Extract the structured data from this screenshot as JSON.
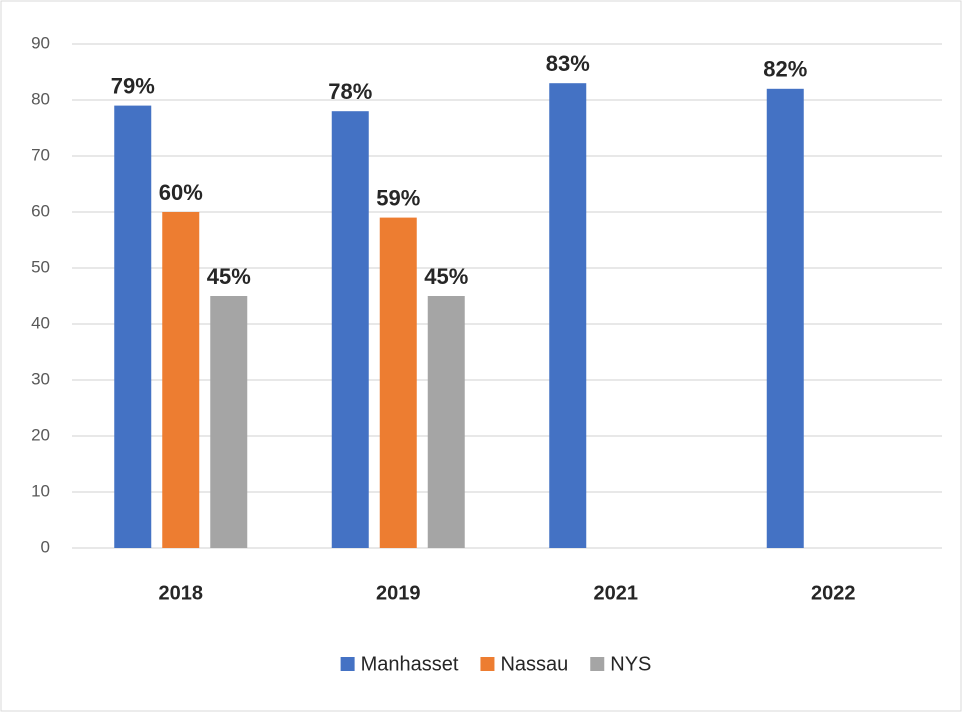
{
  "chart_data": {
    "type": "bar",
    "categories": [
      "2018",
      "2019",
      "2021",
      "2022"
    ],
    "series": [
      {
        "name": "Manhasset",
        "color": "#4472c4",
        "values": [
          79,
          78,
          83,
          82
        ],
        "value_labels": [
          "79%",
          "78%",
          "83%",
          "82%"
        ]
      },
      {
        "name": "Nassau",
        "color": "#ed7d31",
        "values": [
          60,
          59,
          null,
          null
        ],
        "value_labels": [
          "60%",
          "59%",
          null,
          null
        ]
      },
      {
        "name": "NYS",
        "color": "#a5a5a5",
        "values": [
          45,
          45,
          null,
          null
        ],
        "value_labels": [
          "45%",
          "45%",
          null,
          null
        ]
      }
    ],
    "ylim": [
      0,
      90
    ],
    "yticks": [
      0,
      10,
      20,
      30,
      40,
      50,
      60,
      70,
      80,
      90
    ],
    "grid": true,
    "legend": "bottom"
  }
}
